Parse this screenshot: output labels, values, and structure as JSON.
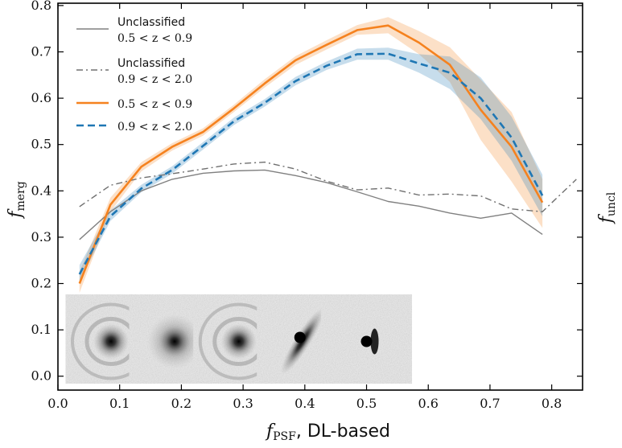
{
  "chart_data": {
    "type": "line",
    "xlabel_symbol": "f",
    "xlabel_sub": "PSF",
    "xlabel_rest": ", DL-based",
    "ylabel_symbol": "f",
    "ylabel_sub": "merg",
    "ylabel_right_symbol": "f",
    "ylabel_right_sub": "uncl",
    "xlim": [
      0.0,
      0.85
    ],
    "ylim": [
      -0.03,
      0.805
    ],
    "xticks": [
      "0.0",
      "0.1",
      "0.2",
      "0.3",
      "0.4",
      "0.5",
      "0.6",
      "0.7",
      "0.8"
    ],
    "xtick_values": [
      0.0,
      0.1,
      0.2,
      0.3,
      0.4,
      0.5,
      0.6,
      0.7,
      0.8
    ],
    "yticks": [
      "0.0",
      "0.1",
      "0.2",
      "0.3",
      "0.4",
      "0.5",
      "0.6",
      "0.7",
      "0.8"
    ],
    "ytick_values": [
      0.0,
      0.1,
      0.2,
      0.3,
      0.4,
      0.5,
      0.6,
      0.7,
      0.8
    ],
    "legend_position": "top-left",
    "series": [
      {
        "name": "Unclassified 0.5 < z < 0.9",
        "legend_line1": "Unclassified",
        "legend_line2": "0.5 < z < 0.9",
        "color": "#808080",
        "style": "solid",
        "x": [
          0.035,
          0.085,
          0.135,
          0.185,
          0.235,
          0.285,
          0.335,
          0.385,
          0.435,
          0.485,
          0.535,
          0.585,
          0.635,
          0.685,
          0.735,
          0.785
        ],
        "y": [
          0.295,
          0.355,
          0.4,
          0.425,
          0.438,
          0.443,
          0.445,
          0.433,
          0.418,
          0.398,
          0.377,
          0.367,
          0.352,
          0.341,
          0.352,
          0.306
        ]
      },
      {
        "name": "Unclassified 0.9 < z < 2.0",
        "legend_line1": "Unclassified",
        "legend_line2": "0.9 < z < 2.0",
        "color": "#707070",
        "style": "dashdot",
        "x": [
          0.035,
          0.085,
          0.135,
          0.185,
          0.235,
          0.285,
          0.335,
          0.385,
          0.435,
          0.485,
          0.535,
          0.585,
          0.635,
          0.685,
          0.735,
          0.785,
          0.84
        ],
        "y": [
          0.366,
          0.412,
          0.428,
          0.437,
          0.447,
          0.458,
          0.462,
          0.447,
          0.421,
          0.402,
          0.406,
          0.391,
          0.393,
          0.389,
          0.361,
          0.355,
          0.425
        ]
      },
      {
        "name": "0.5 < z < 0.9",
        "legend_line1": "0.5 < z < 0.9",
        "color": "#f5821f",
        "style": "solid",
        "x": [
          0.035,
          0.085,
          0.135,
          0.185,
          0.235,
          0.285,
          0.335,
          0.385,
          0.435,
          0.485,
          0.535,
          0.585,
          0.635,
          0.685,
          0.735,
          0.785
        ],
        "y": [
          0.2,
          0.37,
          0.452,
          0.495,
          0.527,
          0.578,
          0.632,
          0.682,
          0.715,
          0.747,
          0.757,
          0.72,
          0.672,
          0.575,
          0.495,
          0.375
        ],
        "band_lower": [
          0.18,
          0.355,
          0.442,
          0.487,
          0.519,
          0.57,
          0.623,
          0.672,
          0.705,
          0.737,
          0.74,
          0.695,
          0.635,
          0.51,
          0.42,
          0.32
        ],
        "band_upper": [
          0.225,
          0.385,
          0.462,
          0.503,
          0.535,
          0.586,
          0.641,
          0.691,
          0.725,
          0.758,
          0.775,
          0.745,
          0.71,
          0.64,
          0.57,
          0.425
        ]
      },
      {
        "name": "0.9 < z < 2.0",
        "legend_line1": "0.9 < z < 2.0",
        "color": "#1f77b4",
        "style": "dashed",
        "x": [
          0.035,
          0.085,
          0.135,
          0.185,
          0.235,
          0.285,
          0.335,
          0.385,
          0.435,
          0.485,
          0.535,
          0.585,
          0.635,
          0.685,
          0.735,
          0.785
        ],
        "y": [
          0.22,
          0.345,
          0.405,
          0.445,
          0.497,
          0.55,
          0.59,
          0.637,
          0.67,
          0.695,
          0.696,
          0.675,
          0.655,
          0.6,
          0.515,
          0.39
        ],
        "band_lower": [
          0.205,
          0.335,
          0.397,
          0.437,
          0.489,
          0.542,
          0.582,
          0.628,
          0.661,
          0.683,
          0.683,
          0.655,
          0.62,
          0.555,
          0.465,
          0.345
        ],
        "band_upper": [
          0.24,
          0.358,
          0.413,
          0.453,
          0.505,
          0.558,
          0.598,
          0.646,
          0.679,
          0.707,
          0.709,
          0.695,
          0.69,
          0.645,
          0.56,
          0.435
        ]
      }
    ],
    "inset_images": [
      {
        "name": "galaxy-ring-a",
        "x_center": 0.086,
        "morphology": "ring"
      },
      {
        "name": "galaxy-compact",
        "x_center": 0.189,
        "morphology": "compact"
      },
      {
        "name": "galaxy-ring-b",
        "x_center": 0.293,
        "morphology": "ring-arc"
      },
      {
        "name": "galaxy-edge-on",
        "x_center": 0.396,
        "morphology": "edge-on"
      },
      {
        "name": "galaxy-point-source",
        "x_center": 0.5,
        "morphology": "point-disk"
      }
    ]
  }
}
